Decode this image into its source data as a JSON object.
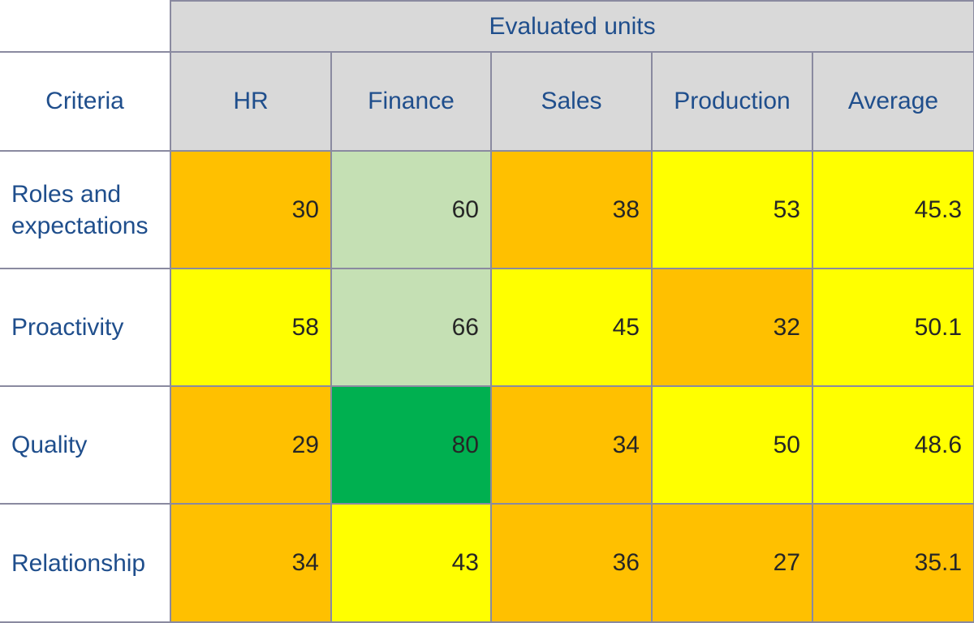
{
  "chart_data": {
    "type": "heatmap",
    "title": "",
    "column_group_label": "Evaluated units",
    "row_header_label": "Criteria",
    "columns": [
      "HR",
      "Finance",
      "Sales",
      "Production",
      "Average"
    ],
    "rows": [
      {
        "label": "Roles and expectations",
        "values": [
          "30",
          "60",
          "38",
          "53",
          "45.3"
        ],
        "colors": [
          "#ffc000",
          "#c5e0b4",
          "#ffc000",
          "#ffff00",
          "#ffff00"
        ]
      },
      {
        "label": "Proactivity",
        "values": [
          "58",
          "66",
          "45",
          "32",
          "50.1"
        ],
        "colors": [
          "#ffff00",
          "#c5e0b4",
          "#ffff00",
          "#ffc000",
          "#ffff00"
        ]
      },
      {
        "label": "Quality",
        "values": [
          "29",
          "80",
          "34",
          "50",
          "48.6"
        ],
        "colors": [
          "#ffc000",
          "#00b050",
          "#ffc000",
          "#ffff00",
          "#ffff00"
        ]
      },
      {
        "label": "Relationship",
        "values": [
          "34",
          "43",
          "36",
          "27",
          "35.1"
        ],
        "colors": [
          "#ffc000",
          "#ffff00",
          "#ffc000",
          "#ffc000",
          "#ffc000"
        ]
      }
    ],
    "bold_column": "Average"
  }
}
